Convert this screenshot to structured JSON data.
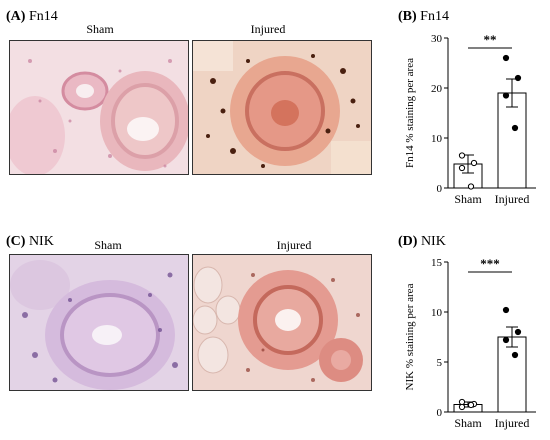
{
  "panels": {
    "A": {
      "letter": "(A)",
      "marker": "Fn14",
      "left_caption": "Sham",
      "right_caption": "Injured"
    },
    "B": {
      "letter": "(B)",
      "marker": "Fn14"
    },
    "C": {
      "letter": "(C)",
      "marker": "NIK",
      "left_caption": "Sham",
      "right_caption": "Injured"
    },
    "D": {
      "letter": "(D)",
      "marker": "NIK"
    }
  },
  "colors": {
    "sham_tissue": "#e9c8d6",
    "injured_tissue": "#e7a08a",
    "nik_sham_tissue": "#cdb1d9",
    "nik_injured_tissue": "#e1928a"
  },
  "chart_data": [
    {
      "type": "bar",
      "panel": "B",
      "categories": [
        "Sham",
        "Injured"
      ],
      "values": [
        4.8,
        19.0
      ],
      "errors": [
        1.8,
        2.8
      ],
      "points": [
        [
          6.5,
          5.0,
          4.0,
          0.3
        ],
        [
          26.0,
          22.0,
          18.5,
          12.0
        ]
      ],
      "ylabel": "Fn14 % staining per area",
      "xlabel": "",
      "ylim": [
        0,
        30
      ],
      "yticks": [
        0,
        10,
        20,
        30
      ],
      "significance": "**"
    },
    {
      "type": "bar",
      "panel": "D",
      "categories": [
        "Sham",
        "Injured"
      ],
      "values": [
        0.75,
        7.5
      ],
      "errors": [
        0.25,
        1.0
      ],
      "points": [
        [
          1.0,
          0.8,
          0.5,
          0.7
        ],
        [
          10.2,
          8.0,
          7.2,
          5.7
        ]
      ],
      "ylabel": "NIK % staining per area",
      "xlabel": "",
      "ylim": [
        0,
        15
      ],
      "yticks": [
        0,
        5,
        10,
        15
      ],
      "significance": "***"
    }
  ]
}
